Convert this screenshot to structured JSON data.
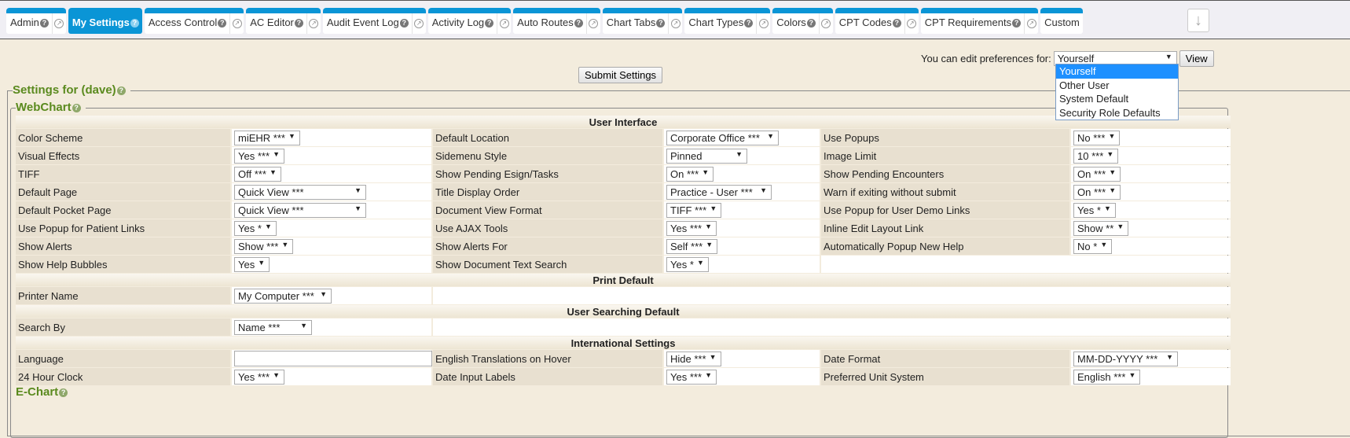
{
  "tabs": [
    {
      "label": "Admin",
      "popout": true
    },
    {
      "label": "My Settings",
      "popout": false,
      "active": true
    },
    {
      "label": "Access Control",
      "popout": true
    },
    {
      "label": "AC Editor",
      "popout": true
    },
    {
      "label": "Audit Event Log",
      "popout": true
    },
    {
      "label": "Activity Log",
      "popout": true
    },
    {
      "label": "Auto Routes",
      "popout": true
    },
    {
      "label": "Chart Tabs",
      "popout": true
    },
    {
      "label": "Chart Types",
      "popout": true
    },
    {
      "label": "Colors",
      "popout": true
    },
    {
      "label": "CPT Codes",
      "popout": true
    },
    {
      "label": "CPT Requirements",
      "popout": true
    },
    {
      "label": "Custom",
      "popout": false
    }
  ],
  "prefs": {
    "label": "You can edit preferences for:",
    "selected": "Yourself",
    "view_label": "View",
    "options": [
      "Yourself",
      "Other User",
      "System Default",
      "Security Role Defaults"
    ]
  },
  "submit_label": "Submit Settings",
  "settings_title": "Settings for (dave)",
  "webchart_title": "WebChart",
  "echart_title": "E-Chart",
  "colors": {
    "accent": "#0a95d6",
    "section_title": "#5a8a1e",
    "background": "#f3ecdd"
  },
  "sections": [
    {
      "title": "User Interface",
      "rows": [
        [
          [
            "Color Scheme",
            "miEHR ***"
          ],
          [
            "Default Location",
            "Corporate Office ***"
          ],
          [
            "Use Popups",
            "No ***"
          ]
        ],
        [
          [
            "Visual Effects",
            "Yes ***"
          ],
          [
            "Sidemenu Style",
            "Pinned"
          ],
          [
            "Image Limit",
            "10 ***"
          ]
        ],
        [
          [
            "TIFF",
            "Off ***"
          ],
          [
            "Show Pending Esign/Tasks",
            "On ***"
          ],
          [
            "Show Pending Encounters",
            "On ***"
          ]
        ],
        [
          [
            "Default Page",
            "Quick View ***"
          ],
          [
            "Title Display Order",
            "Practice - User ***"
          ],
          [
            "Warn if exiting without submit",
            "On ***"
          ]
        ],
        [
          [
            "Default Pocket Page",
            "Quick View ***"
          ],
          [
            "Document View Format",
            "TIFF ***"
          ],
          [
            "Use Popup for User Demo Links",
            "Yes *"
          ]
        ],
        [
          [
            "Use Popup for Patient Links",
            "Yes *"
          ],
          [
            "Use AJAX Tools",
            "Yes ***"
          ],
          [
            "Inline Edit Layout Link",
            "Show **"
          ]
        ],
        [
          [
            "Show Alerts",
            "Show ***"
          ],
          [
            "Show Alerts For",
            "Self ***"
          ],
          [
            "Automatically Popup New Help",
            "No *"
          ]
        ],
        [
          [
            "Show Help Bubbles",
            "Yes"
          ],
          [
            "Show Document Text Search",
            "Yes *"
          ]
        ]
      ]
    },
    {
      "title": "Print Default",
      "rows": [
        [
          [
            "Printer Name",
            "My Computer ***"
          ]
        ]
      ]
    },
    {
      "title": "User Searching Default",
      "rows": [
        [
          [
            "Search By",
            "Name ***"
          ]
        ]
      ]
    },
    {
      "title": "International Settings",
      "rows": [
        [
          [
            "Language",
            ""
          ],
          [
            "English Translations on Hover",
            "Hide ***"
          ],
          [
            "Date Format",
            "MM-DD-YYYY ***"
          ]
        ],
        [
          [
            "24 Hour Clock",
            "Yes ***"
          ],
          [
            "Date Input Labels",
            "Yes ***"
          ],
          [
            "Preferred Unit System",
            "English ***"
          ]
        ]
      ]
    }
  ]
}
